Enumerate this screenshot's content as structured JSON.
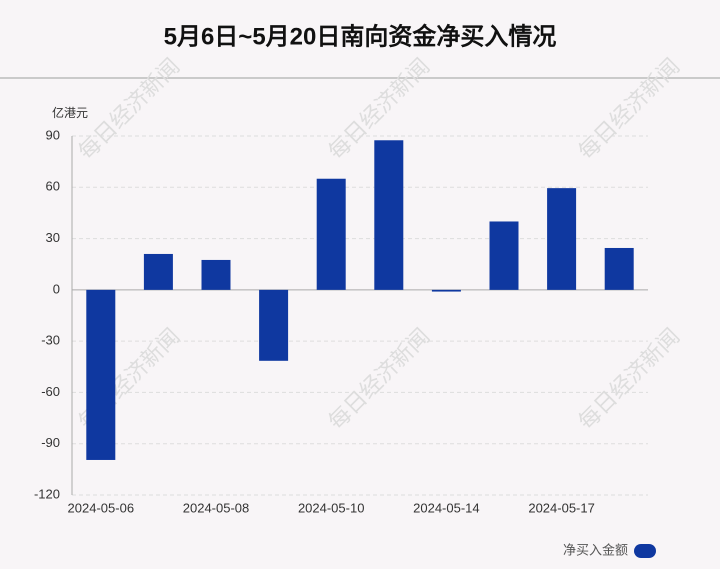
{
  "chart_data": {
    "type": "bar",
    "title": "5月6日~5月20日南向资金净买入情况",
    "y_axis_label": "亿港元",
    "watermark": "每日经济新闻",
    "categories": [
      "2024-05-06",
      null,
      "2024-05-08",
      null,
      "2024-05-10",
      null,
      "2024-05-14",
      null,
      "2024-05-17",
      null
    ],
    "series": [
      {
        "name": "净买入金额",
        "color": "#0f38a0",
        "values": [
          -99.5,
          21,
          17.5,
          -41.5,
          65,
          87.5,
          -1,
          40,
          59.5,
          24.5
        ]
      }
    ],
    "ylim": [
      -120,
      90
    ],
    "yticks": [
      -120,
      -90,
      -60,
      -30,
      0,
      30,
      60,
      90
    ],
    "grid": true,
    "legend": "bottom-right"
  }
}
